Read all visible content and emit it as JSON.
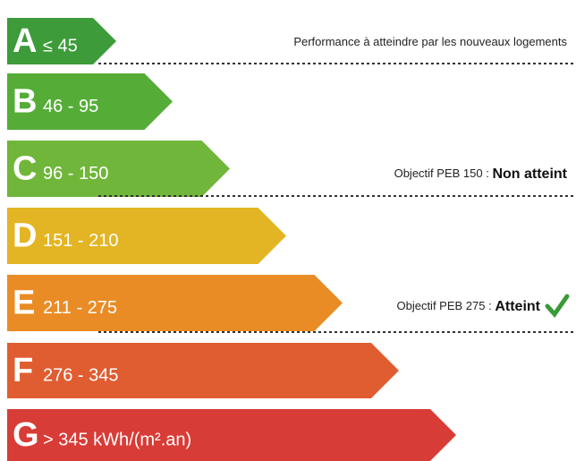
{
  "bands": [
    {
      "letter": "A",
      "range": "≤ 45",
      "color": "#3d9b3a"
    },
    {
      "letter": "B",
      "range": "46 - 95",
      "color": "#55ad38"
    },
    {
      "letter": "C",
      "range": "96 - 150",
      "color": "#6fb63a"
    },
    {
      "letter": "D",
      "range": "151 - 210",
      "color": "#e3b524"
    },
    {
      "letter": "E",
      "range": "211 - 275",
      "color": "#e98c26"
    },
    {
      "letter": "F",
      "range": "276 - 345",
      "color": "#df5d31"
    },
    {
      "letter": "G",
      "range": "> 345  kWh/(m².an)",
      "color": "#d83c37"
    }
  ],
  "annotations": [
    {
      "label": "Performance à atteindre par les nouveaux logements"
    },
    {
      "label": "Objectif PEB 150 :",
      "status": "Non atteint"
    },
    {
      "label": "Objectif PEB 275 :",
      "status": "Atteint"
    }
  ]
}
